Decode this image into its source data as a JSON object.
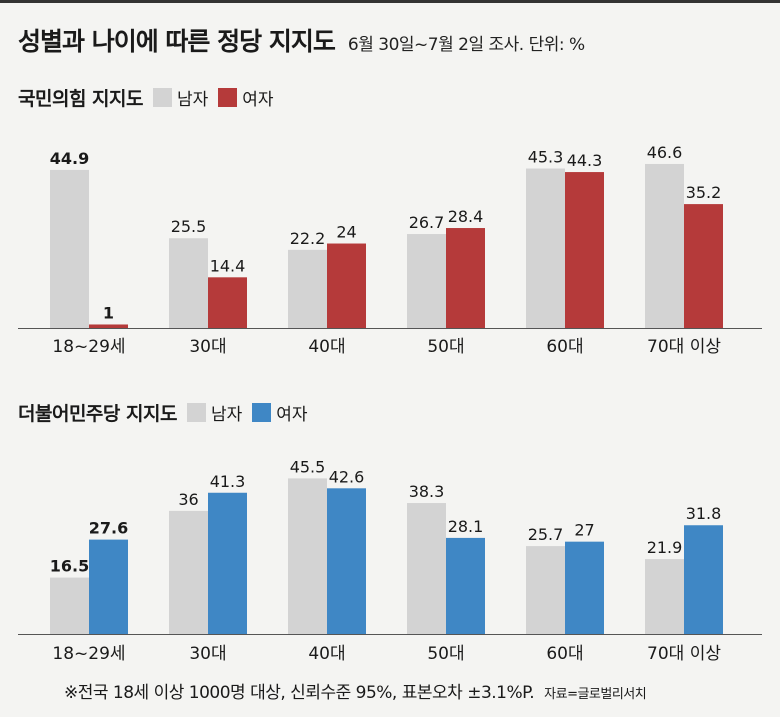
{
  "header": {
    "title": "성별과 나이에 따른 정당 지지도",
    "subtitle": "6월 30일~7월 2일 조사. 단위: %"
  },
  "colors": {
    "male": "#d3d3d3",
    "female_ppp": "#b53a3a",
    "female_dp": "#3f87c5",
    "axis": "#555555"
  },
  "chart_data": [
    {
      "type": "bar",
      "title": "국민의힘 지지도",
      "categories": [
        "18~29세",
        "30대",
        "40대",
        "50대",
        "60대",
        "70대 이상"
      ],
      "series": [
        {
          "name": "남자",
          "values": [
            44.9,
            25.5,
            22.2,
            26.7,
            45.3,
            46.6
          ],
          "labels": [
            "44.9",
            "25.5",
            "22.2",
            "26.7",
            "45.3",
            "46.6"
          ]
        },
        {
          "name": "여자",
          "values": [
            1,
            14.4,
            24,
            28.4,
            44.3,
            35.2
          ],
          "labels": [
            "1",
            "14.4",
            "24",
            "28.4",
            "44.3",
            "35.2"
          ]
        }
      ],
      "bold_category_index": 0,
      "ylim": [
        0,
        50
      ]
    },
    {
      "type": "bar",
      "title": "더불어민주당 지지도",
      "categories": [
        "18~29세",
        "30대",
        "40대",
        "50대",
        "60대",
        "70대 이상"
      ],
      "series": [
        {
          "name": "남자",
          "values": [
            16.5,
            36,
            45.5,
            38.3,
            25.7,
            21.9
          ],
          "labels": [
            "16.5",
            "36",
            "45.5",
            "38.3",
            "25.7",
            "21.9"
          ]
        },
        {
          "name": "여자",
          "values": [
            27.6,
            41.3,
            42.6,
            28.1,
            27,
            31.8
          ],
          "labels": [
            "27.6",
            "41.3",
            "42.6",
            "28.1",
            "27",
            "31.8"
          ]
        }
      ],
      "bold_category_index": 0,
      "ylim": [
        0,
        50
      ]
    }
  ],
  "footer": {
    "note": "※전국 18세 이상 1000명 대상, 신뢰수준 95%, 표본오차 ±3.1%P.",
    "source": "자료=글로벌리서치"
  }
}
